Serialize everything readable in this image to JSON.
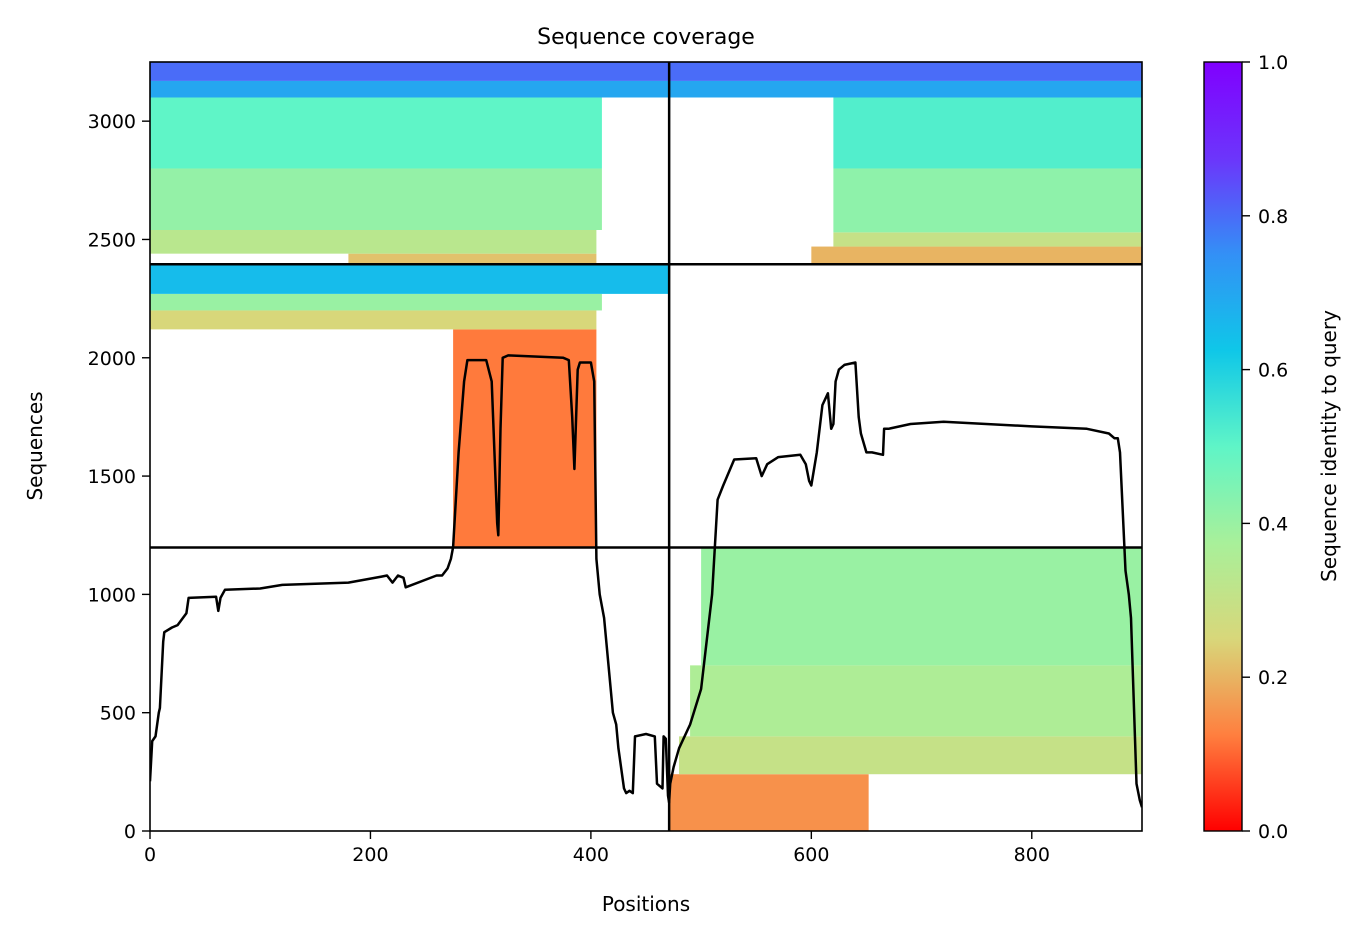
{
  "chart_data": {
    "type": "heatmap",
    "title": "Sequence coverage",
    "xlabel": "Positions",
    "ylabel": "Sequences",
    "xlim": [
      0,
      900
    ],
    "ylim": [
      0,
      3250
    ],
    "x_ticks": [
      0,
      200,
      400,
      600,
      800
    ],
    "y_ticks": [
      0,
      500,
      1000,
      1500,
      2000,
      2500,
      3000
    ],
    "x_tick_labels": [
      "0",
      "200",
      "400",
      "600",
      "800"
    ],
    "y_tick_labels": [
      "0",
      "500",
      "1000",
      "1500",
      "2000",
      "2500",
      "3000"
    ],
    "colorbar": {
      "label": "Sequence identity to query",
      "range": [
        0,
        1
      ],
      "ticks": [
        0.0,
        0.2,
        0.4,
        0.6,
        0.8,
        1.0
      ],
      "tick_labels": [
        "0.0",
        "0.2",
        "0.4",
        "0.6",
        "0.8",
        "1.0"
      ],
      "colormap": "rainbow",
      "colormap_stops": [
        "#ff0000",
        "#ff7f3f",
        "#d8d77a",
        "#a8f09a",
        "#5ff5c7",
        "#0fc7e8",
        "#3390f6",
        "#6c35fb",
        "#8000ff"
      ]
    },
    "block_dividers": {
      "x": [
        471
      ],
      "y": [
        1198,
        2395
      ]
    },
    "coverage_blocks": [
      {
        "name": "block-bottom-right",
        "x0": 471,
        "x1": 900,
        "y0": 0,
        "y1": 1198,
        "bands": [
          {
            "y0": 0,
            "y1": 240,
            "x0": 471,
            "x1": 652,
            "identity": 0.15
          },
          {
            "y0": 240,
            "y1": 400,
            "x0": 480,
            "x1": 900,
            "identity": 0.3
          },
          {
            "y0": 400,
            "y1": 700,
            "x0": 490,
            "x1": 900,
            "identity": 0.36
          },
          {
            "y0": 700,
            "y1": 1198,
            "x0": 500,
            "x1": 900,
            "identity": 0.4
          }
        ]
      },
      {
        "name": "block-middle-left",
        "x0": 0,
        "x1": 471,
        "y0": 1198,
        "y1": 2395,
        "bands": [
          {
            "y0": 1198,
            "y1": 2120,
            "x0": 275,
            "x1": 405,
            "identity": 0.12
          },
          {
            "y0": 2120,
            "y1": 2200,
            "x0": 0,
            "x1": 405,
            "identity": 0.25
          },
          {
            "y0": 2200,
            "y1": 2270,
            "x0": 0,
            "x1": 410,
            "identity": 0.4
          },
          {
            "y0": 2270,
            "y1": 2395,
            "x0": 0,
            "x1": 471,
            "identity": 0.65
          }
        ]
      },
      {
        "name": "block-top-left",
        "x0": 0,
        "x1": 471,
        "y0": 2395,
        "y1": 3250,
        "bands": [
          {
            "y0": 2395,
            "y1": 2440,
            "x0": 180,
            "x1": 405,
            "identity": 0.22
          },
          {
            "y0": 2440,
            "y1": 2540,
            "x0": 0,
            "x1": 405,
            "identity": 0.33
          },
          {
            "y0": 2540,
            "y1": 2800,
            "x0": 0,
            "x1": 410,
            "identity": 0.41
          },
          {
            "y0": 2800,
            "y1": 3100,
            "x0": 0,
            "x1": 410,
            "identity": 0.5
          },
          {
            "y0": 3100,
            "y1": 3170,
            "x0": 0,
            "x1": 471,
            "identity": 0.7
          },
          {
            "y0": 3170,
            "y1": 3250,
            "x0": 0,
            "x1": 471,
            "identity": 0.8
          }
        ]
      },
      {
        "name": "block-top-right",
        "x0": 471,
        "x1": 900,
        "y0": 2395,
        "y1": 3250,
        "bands": [
          {
            "y0": 2395,
            "y1": 2470,
            "x0": 600,
            "x1": 900,
            "identity": 0.2
          },
          {
            "y0": 2470,
            "y1": 2530,
            "x0": 620,
            "x1": 900,
            "identity": 0.3
          },
          {
            "y0": 2530,
            "y1": 2800,
            "x0": 620,
            "x1": 900,
            "identity": 0.42
          },
          {
            "y0": 2800,
            "y1": 3100,
            "x0": 620,
            "x1": 900,
            "identity": 0.52
          },
          {
            "y0": 3100,
            "y1": 3170,
            "x0": 471,
            "x1": 900,
            "identity": 0.7
          },
          {
            "y0": 3170,
            "y1": 3250,
            "x0": 471,
            "x1": 900,
            "identity": 0.8
          }
        ]
      }
    ],
    "coverage_line": {
      "x": [
        0,
        2,
        5,
        8,
        9,
        12,
        13,
        20,
        25,
        33,
        35,
        60,
        62,
        64,
        68,
        100,
        120,
        180,
        210,
        215,
        220,
        225,
        230,
        232,
        260,
        265,
        270,
        273,
        275,
        280,
        285,
        288,
        305,
        310,
        315,
        316,
        318,
        320,
        325,
        375,
        380,
        383,
        385,
        388,
        390,
        400,
        403,
        405,
        408,
        412,
        418,
        420,
        423,
        425,
        430,
        432,
        435,
        438,
        440,
        450,
        458,
        460,
        465,
        466,
        468,
        470,
        471,
        472,
        475,
        480,
        490,
        500,
        505,
        510,
        515,
        520,
        530,
        550,
        555,
        560,
        570,
        590,
        595,
        598,
        600,
        605,
        610,
        615,
        618,
        620,
        622,
        625,
        630,
        640,
        643,
        645,
        650,
        655,
        665,
        666,
        670,
        690,
        720,
        800,
        850,
        870,
        875,
        878,
        880,
        885,
        888,
        890,
        895,
        898,
        900
      ],
      "y": [
        210,
        380,
        400,
        500,
        520,
        800,
        840,
        860,
        870,
        920,
        985,
        990,
        930,
        985,
        1020,
        1025,
        1040,
        1050,
        1075,
        1080,
        1050,
        1080,
        1070,
        1030,
        1080,
        1080,
        1110,
        1150,
        1200,
        1600,
        1900,
        1990,
        1990,
        1900,
        1300,
        1250,
        1700,
        2000,
        2010,
        2000,
        1990,
        1750,
        1530,
        1950,
        1980,
        1980,
        1900,
        1150,
        1000,
        900,
        600,
        500,
        450,
        350,
        180,
        160,
        170,
        160,
        400,
        410,
        400,
        200,
        180,
        400,
        390,
        150,
        120,
        200,
        270,
        350,
        450,
        600,
        800,
        1000,
        1400,
        1460,
        1570,
        1575,
        1500,
        1550,
        1580,
        1590,
        1550,
        1480,
        1460,
        1600,
        1800,
        1850,
        1700,
        1720,
        1900,
        1950,
        1970,
        1980,
        1750,
        1680,
        1600,
        1600,
        1590,
        1700,
        1700,
        1720,
        1730,
        1710,
        1700,
        1680,
        1660,
        1660,
        1600,
        1100,
        1000,
        900,
        200,
        130,
        100
      ]
    }
  }
}
